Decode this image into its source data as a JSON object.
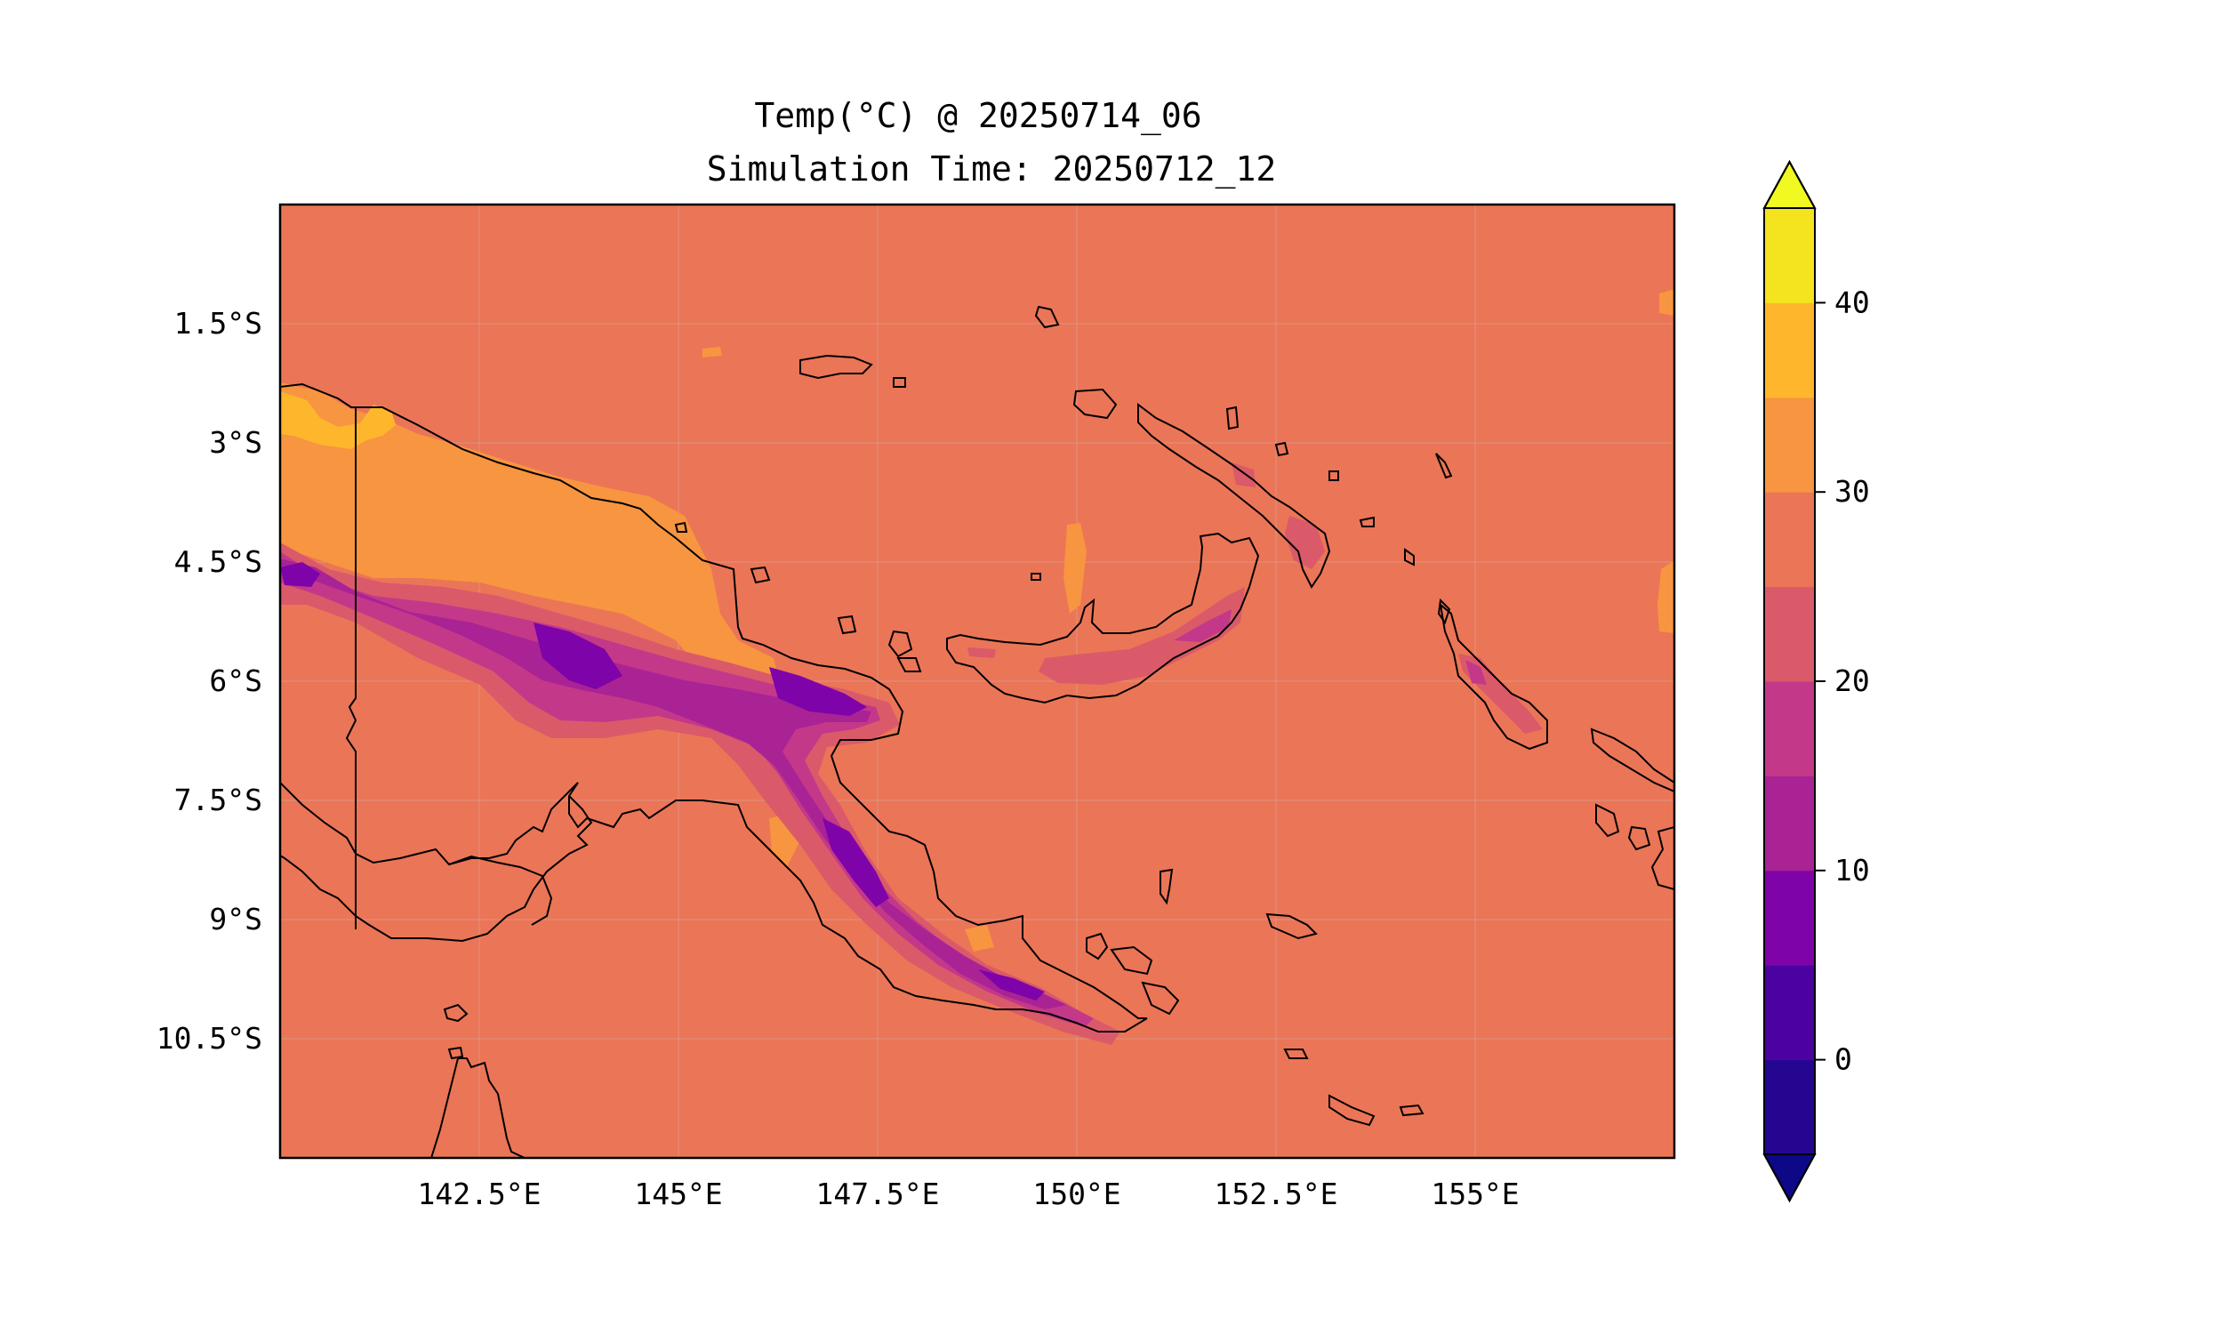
{
  "title_line1": "Temp(°C) @ 20250714_06",
  "title_line2": "Simulation Time: 20250712_12",
  "map": {
    "lon_range": [
      140.0,
      157.5
    ],
    "lat_range": [
      -12.0,
      0.0
    ],
    "lon_ticks": [
      {
        "value": 142.5,
        "label": "142.5°E"
      },
      {
        "value": 145.0,
        "label": "145°E"
      },
      {
        "value": 147.5,
        "label": "147.5°E"
      },
      {
        "value": 150.0,
        "label": "150°E"
      },
      {
        "value": 152.5,
        "label": "152.5°E"
      },
      {
        "value": 155.0,
        "label": "155°E"
      }
    ],
    "lat_ticks": [
      {
        "value": -1.5,
        "label": "1.5°S"
      },
      {
        "value": -3.0,
        "label": "3°S"
      },
      {
        "value": -4.5,
        "label": "4.5°S"
      },
      {
        "value": -6.0,
        "label": "6°S"
      },
      {
        "value": -7.5,
        "label": "7.5°S"
      },
      {
        "value": -9.0,
        "label": "9°S"
      },
      {
        "value": -10.5,
        "label": "10.5°S"
      }
    ],
    "background_color": "#eb7557",
    "grid": true
  },
  "colorbar": {
    "range": [
      -5,
      45
    ],
    "extend": "both",
    "under_color": "#0d0887",
    "over_color": "#f0f921",
    "bins": [
      {
        "from": -5,
        "to": 0,
        "color": "#240691"
      },
      {
        "from": 0,
        "to": 5,
        "color": "#4c02a1"
      },
      {
        "from": 5,
        "to": 10,
        "color": "#7e03a8"
      },
      {
        "from": 10,
        "to": 15,
        "color": "#a92395"
      },
      {
        "from": 15,
        "to": 20,
        "color": "#c4388a"
      },
      {
        "from": 20,
        "to": 25,
        "color": "#da5a6a"
      },
      {
        "from": 25,
        "to": 30,
        "color": "#eb7557"
      },
      {
        "from": 30,
        "to": 35,
        "color": "#f89540"
      },
      {
        "from": 35,
        "to": 40,
        "color": "#feb72d"
      },
      {
        "from": 40,
        "to": 45,
        "color": "#f4e31f"
      }
    ],
    "ticks": [
      {
        "value": 0,
        "label": "0"
      },
      {
        "value": 10,
        "label": "10"
      },
      {
        "value": 20,
        "label": "20"
      },
      {
        "value": 30,
        "label": "30"
      },
      {
        "value": 40,
        "label": "40"
      }
    ]
  }
}
